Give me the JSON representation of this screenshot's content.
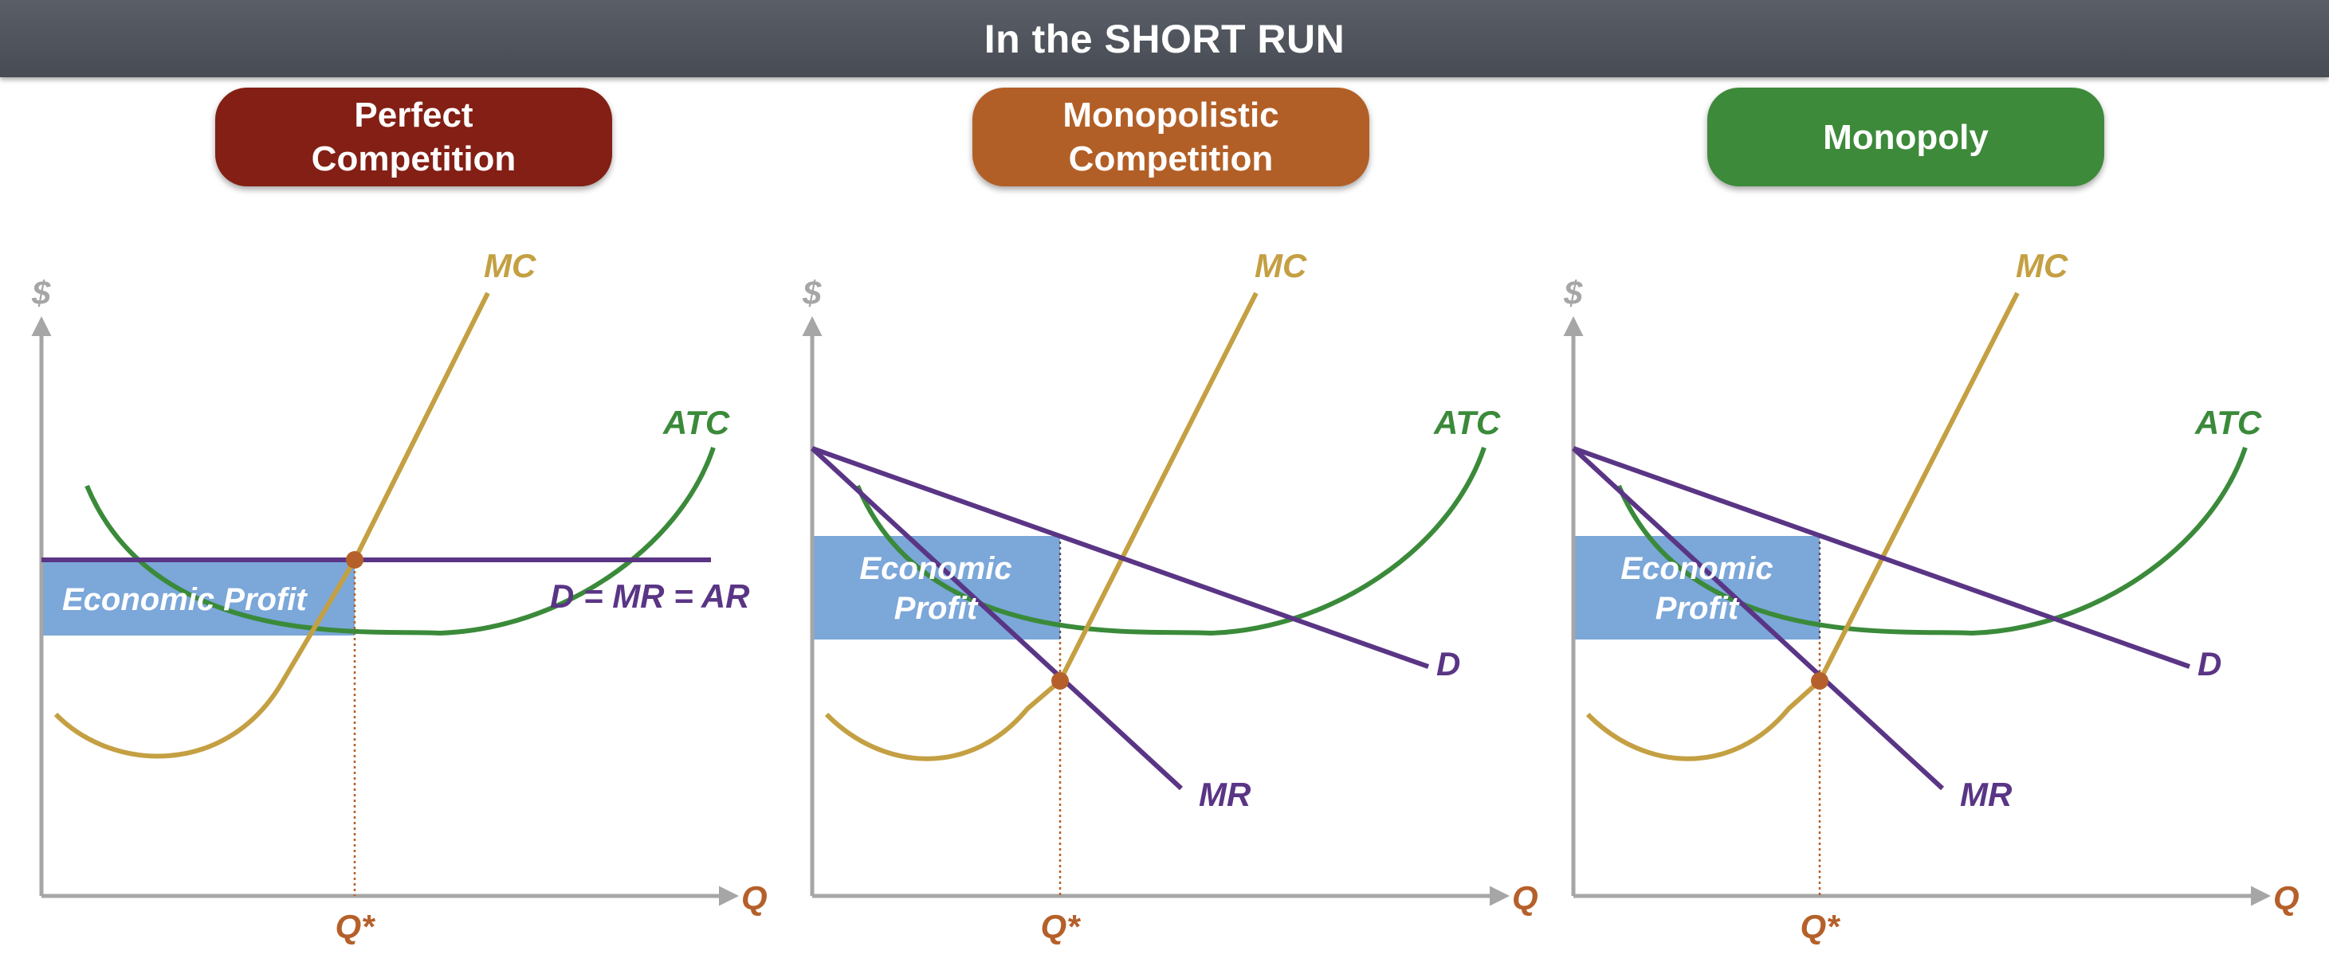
{
  "title": "In the SHORT RUN",
  "colors": {
    "banner": "#50545c",
    "axis": "#a6a6a6",
    "mc": "#c4a043",
    "atc": "#3a8a3a",
    "demand": "#5a3585",
    "profit": "#7ba7d9",
    "qstar": "#b5602a"
  },
  "panels": [
    {
      "id": "perfect",
      "heading": "Perfect\nCompetition",
      "heading_color": "#831f14",
      "y_axis_label": "$",
      "x_axis_label": "Q",
      "qstar_label": "Q*",
      "mc_label": "MC",
      "atc_label": "ATC",
      "demand_label": "D = MR = AR",
      "profit_label": "Economic Profit",
      "profit_label_lines": [
        "Economic Profit"
      ]
    },
    {
      "id": "monopolistic",
      "heading": "Monopolistic\nCompetition",
      "heading_color": "#b25f27",
      "y_axis_label": "$",
      "x_axis_label": "Q",
      "qstar_label": "Q*",
      "mc_label": "MC",
      "atc_label": "ATC",
      "demand_label": "D",
      "mr_label": "MR",
      "profit_label": "Economic Profit",
      "profit_label_lines": [
        "Economic",
        "Profit"
      ]
    },
    {
      "id": "monopoly",
      "heading": "Monopoly",
      "heading_color": "#3d8a3a",
      "y_axis_label": "$",
      "x_axis_label": "Q",
      "qstar_label": "Q*",
      "mc_label": "MC",
      "atc_label": "ATC",
      "demand_label": "D",
      "mr_label": "MR",
      "profit_label": "Economic Profit",
      "profit_label_lines": [
        "Economic",
        "Profit"
      ]
    }
  ]
}
